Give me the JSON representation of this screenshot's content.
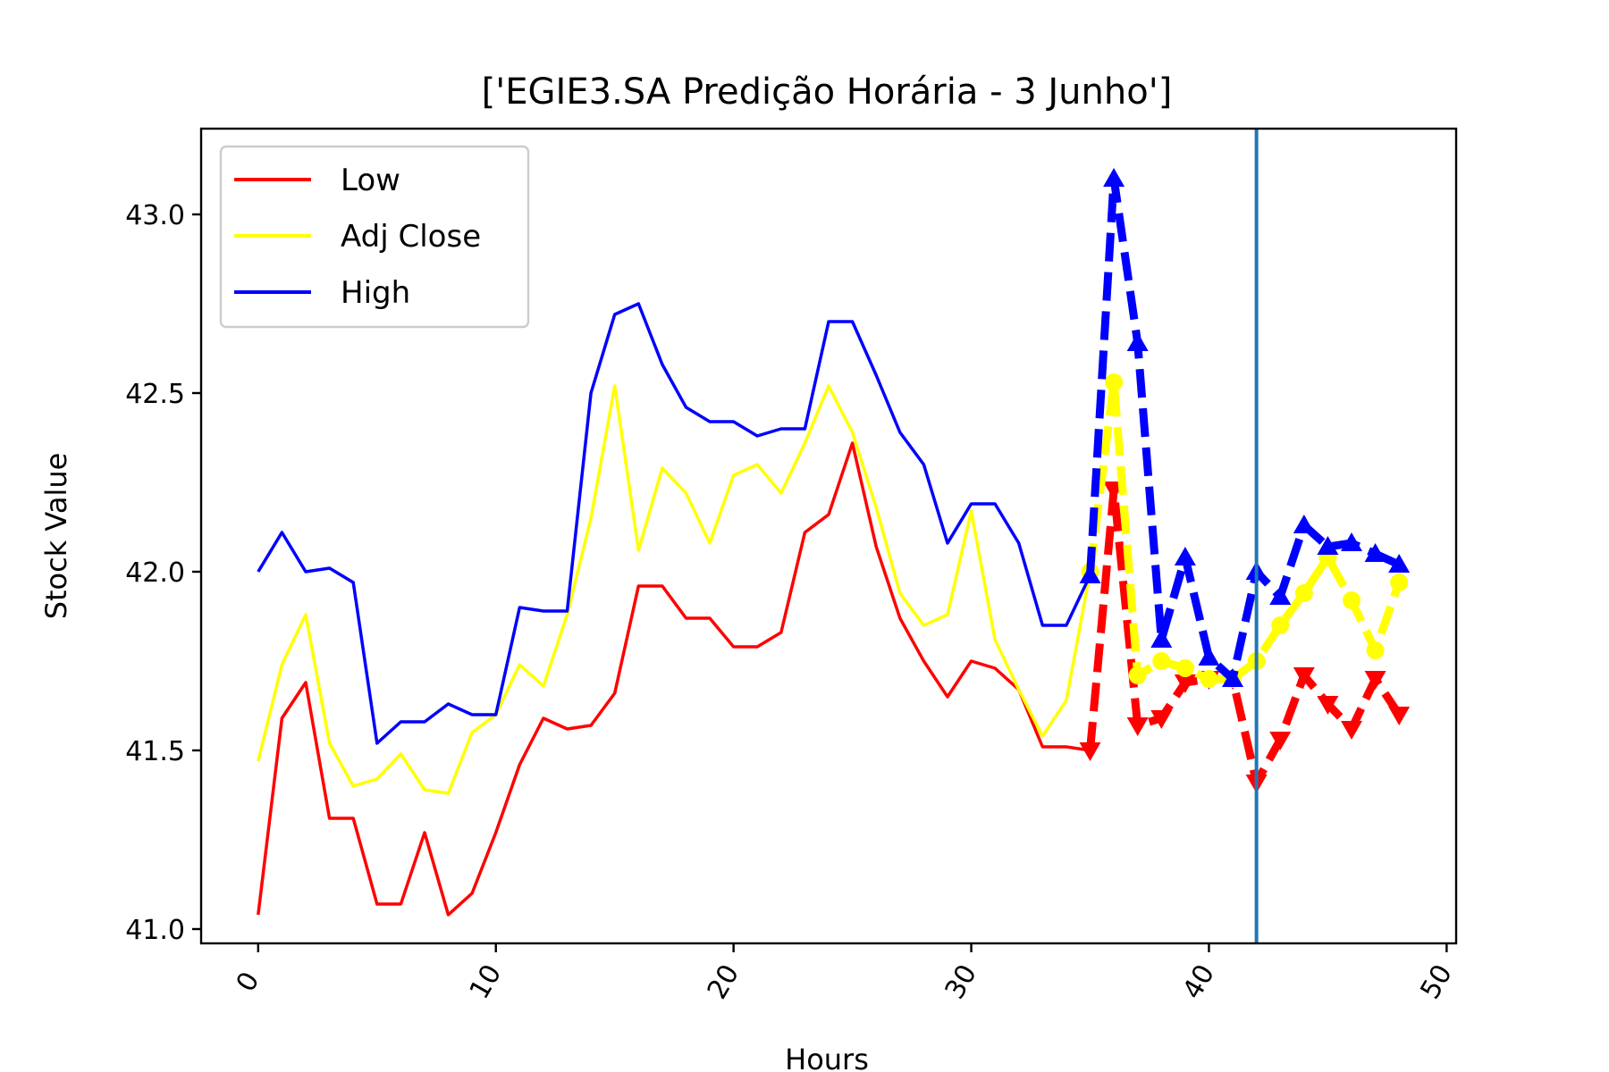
{
  "chart_data": {
    "type": "line",
    "title": "['EGIE3.SA Predição Horária - 3 Junho']",
    "xlabel": "Hours",
    "ylabel": "Stock Value",
    "xlim": [
      -2.4,
      50.4
    ],
    "ylim": [
      40.96,
      43.24
    ],
    "xticks": [
      0,
      10,
      20,
      30,
      40,
      50
    ],
    "xtick_labels": [
      "0",
      "10",
      "20",
      "30",
      "40",
      "50"
    ],
    "yticks": [
      41.0,
      41.5,
      42.0,
      42.5,
      43.0
    ],
    "ytick_labels": [
      "41.0",
      "41.5",
      "42.0",
      "42.5",
      "43.0"
    ],
    "vline_x": 42,
    "vline_color": "#1f77b4",
    "grid": false,
    "legend_position": "upper-left",
    "legend": [
      {
        "label": "Low",
        "color": "#ff0000"
      },
      {
        "label": "Adj Close",
        "color": "#ffff00"
      },
      {
        "label": "High",
        "color": "#0000ff"
      }
    ],
    "series": [
      {
        "name": "Low",
        "color": "#ff0000",
        "style": "solid",
        "x": [
          0,
          1,
          2,
          3,
          4,
          5,
          6,
          7,
          8,
          9,
          10,
          11,
          12,
          13,
          14,
          15,
          16,
          17,
          18,
          19,
          20,
          21,
          22,
          23,
          24,
          25,
          26,
          27,
          28,
          29,
          30,
          31,
          32,
          33,
          34,
          35
        ],
        "values": [
          41.04,
          41.59,
          41.69,
          41.31,
          41.31,
          41.07,
          41.07,
          41.27,
          41.04,
          41.1,
          41.27,
          41.46,
          41.59,
          41.56,
          41.57,
          41.66,
          41.96,
          41.96,
          41.87,
          41.87,
          41.79,
          41.79,
          41.83,
          42.11,
          42.16,
          42.36,
          42.07,
          41.87,
          41.75,
          41.65,
          41.75,
          41.73,
          41.67,
          41.51,
          41.51,
          41.5
        ]
      },
      {
        "name": "Adj Close",
        "color": "#ffff00",
        "style": "solid",
        "x": [
          0,
          1,
          2,
          3,
          4,
          5,
          6,
          7,
          8,
          9,
          10,
          11,
          12,
          13,
          14,
          15,
          16,
          17,
          18,
          19,
          20,
          21,
          22,
          23,
          24,
          25,
          26,
          27,
          28,
          29,
          30,
          31,
          32,
          33,
          34,
          35
        ],
        "values": [
          41.47,
          41.74,
          41.88,
          41.52,
          41.4,
          41.42,
          41.49,
          41.39,
          41.38,
          41.55,
          41.6,
          41.74,
          41.68,
          41.88,
          42.15,
          42.52,
          42.06,
          42.29,
          42.22,
          42.08,
          42.27,
          42.3,
          42.22,
          42.36,
          42.52,
          42.39,
          42.18,
          41.94,
          41.85,
          41.88,
          42.17,
          41.81,
          41.67,
          41.54,
          41.64,
          42.0
        ]
      },
      {
        "name": "High",
        "color": "#0000ff",
        "style": "solid",
        "x": [
          0,
          1,
          2,
          3,
          4,
          5,
          6,
          7,
          8,
          9,
          10,
          11,
          12,
          13,
          14,
          15,
          16,
          17,
          18,
          19,
          20,
          21,
          22,
          23,
          24,
          25,
          26,
          27,
          28,
          29,
          30,
          31,
          32,
          33,
          34,
          35
        ],
        "values": [
          42.0,
          42.11,
          42.0,
          42.01,
          41.97,
          41.52,
          41.58,
          41.58,
          41.63,
          41.6,
          41.6,
          41.9,
          41.89,
          41.89,
          42.5,
          42.72,
          42.75,
          42.58,
          42.46,
          42.42,
          42.42,
          42.38,
          42.4,
          42.4,
          42.7,
          42.7,
          42.55,
          42.39,
          42.3,
          42.08,
          42.19,
          42.19,
          42.08,
          41.85,
          41.85,
          41.99
        ]
      },
      {
        "name": "Low",
        "color": "#ff0000",
        "style": "dashed",
        "marker": "triangle-down",
        "x": [
          35,
          36,
          37,
          38,
          39,
          40,
          41,
          42,
          43,
          44,
          45,
          46,
          47,
          48
        ],
        "values": [
          41.5,
          42.23,
          41.57,
          41.59,
          41.69,
          41.7,
          41.7,
          41.41,
          41.53,
          41.71,
          41.63,
          41.56,
          41.7,
          41.6
        ]
      },
      {
        "name": "Adj Close",
        "color": "#ffff00",
        "style": "dashed",
        "marker": "circle",
        "x": [
          35,
          36,
          37,
          38,
          39,
          40,
          41,
          42,
          43,
          44,
          45,
          46,
          47,
          48
        ],
        "values": [
          42.0,
          42.53,
          41.71,
          41.75,
          41.73,
          41.7,
          41.7,
          41.75,
          41.85,
          41.94,
          42.04,
          41.92,
          41.78,
          41.97
        ]
      },
      {
        "name": "High",
        "color": "#0000ff",
        "style": "dashed",
        "marker": "triangle-up",
        "x": [
          35,
          36,
          37,
          38,
          39,
          40,
          41,
          42,
          43,
          44,
          45,
          46,
          47,
          48
        ],
        "values": [
          41.99,
          43.1,
          42.64,
          41.81,
          42.04,
          41.76,
          41.7,
          42.0,
          41.93,
          42.13,
          42.07,
          42.08,
          42.05,
          42.02
        ]
      }
    ]
  }
}
